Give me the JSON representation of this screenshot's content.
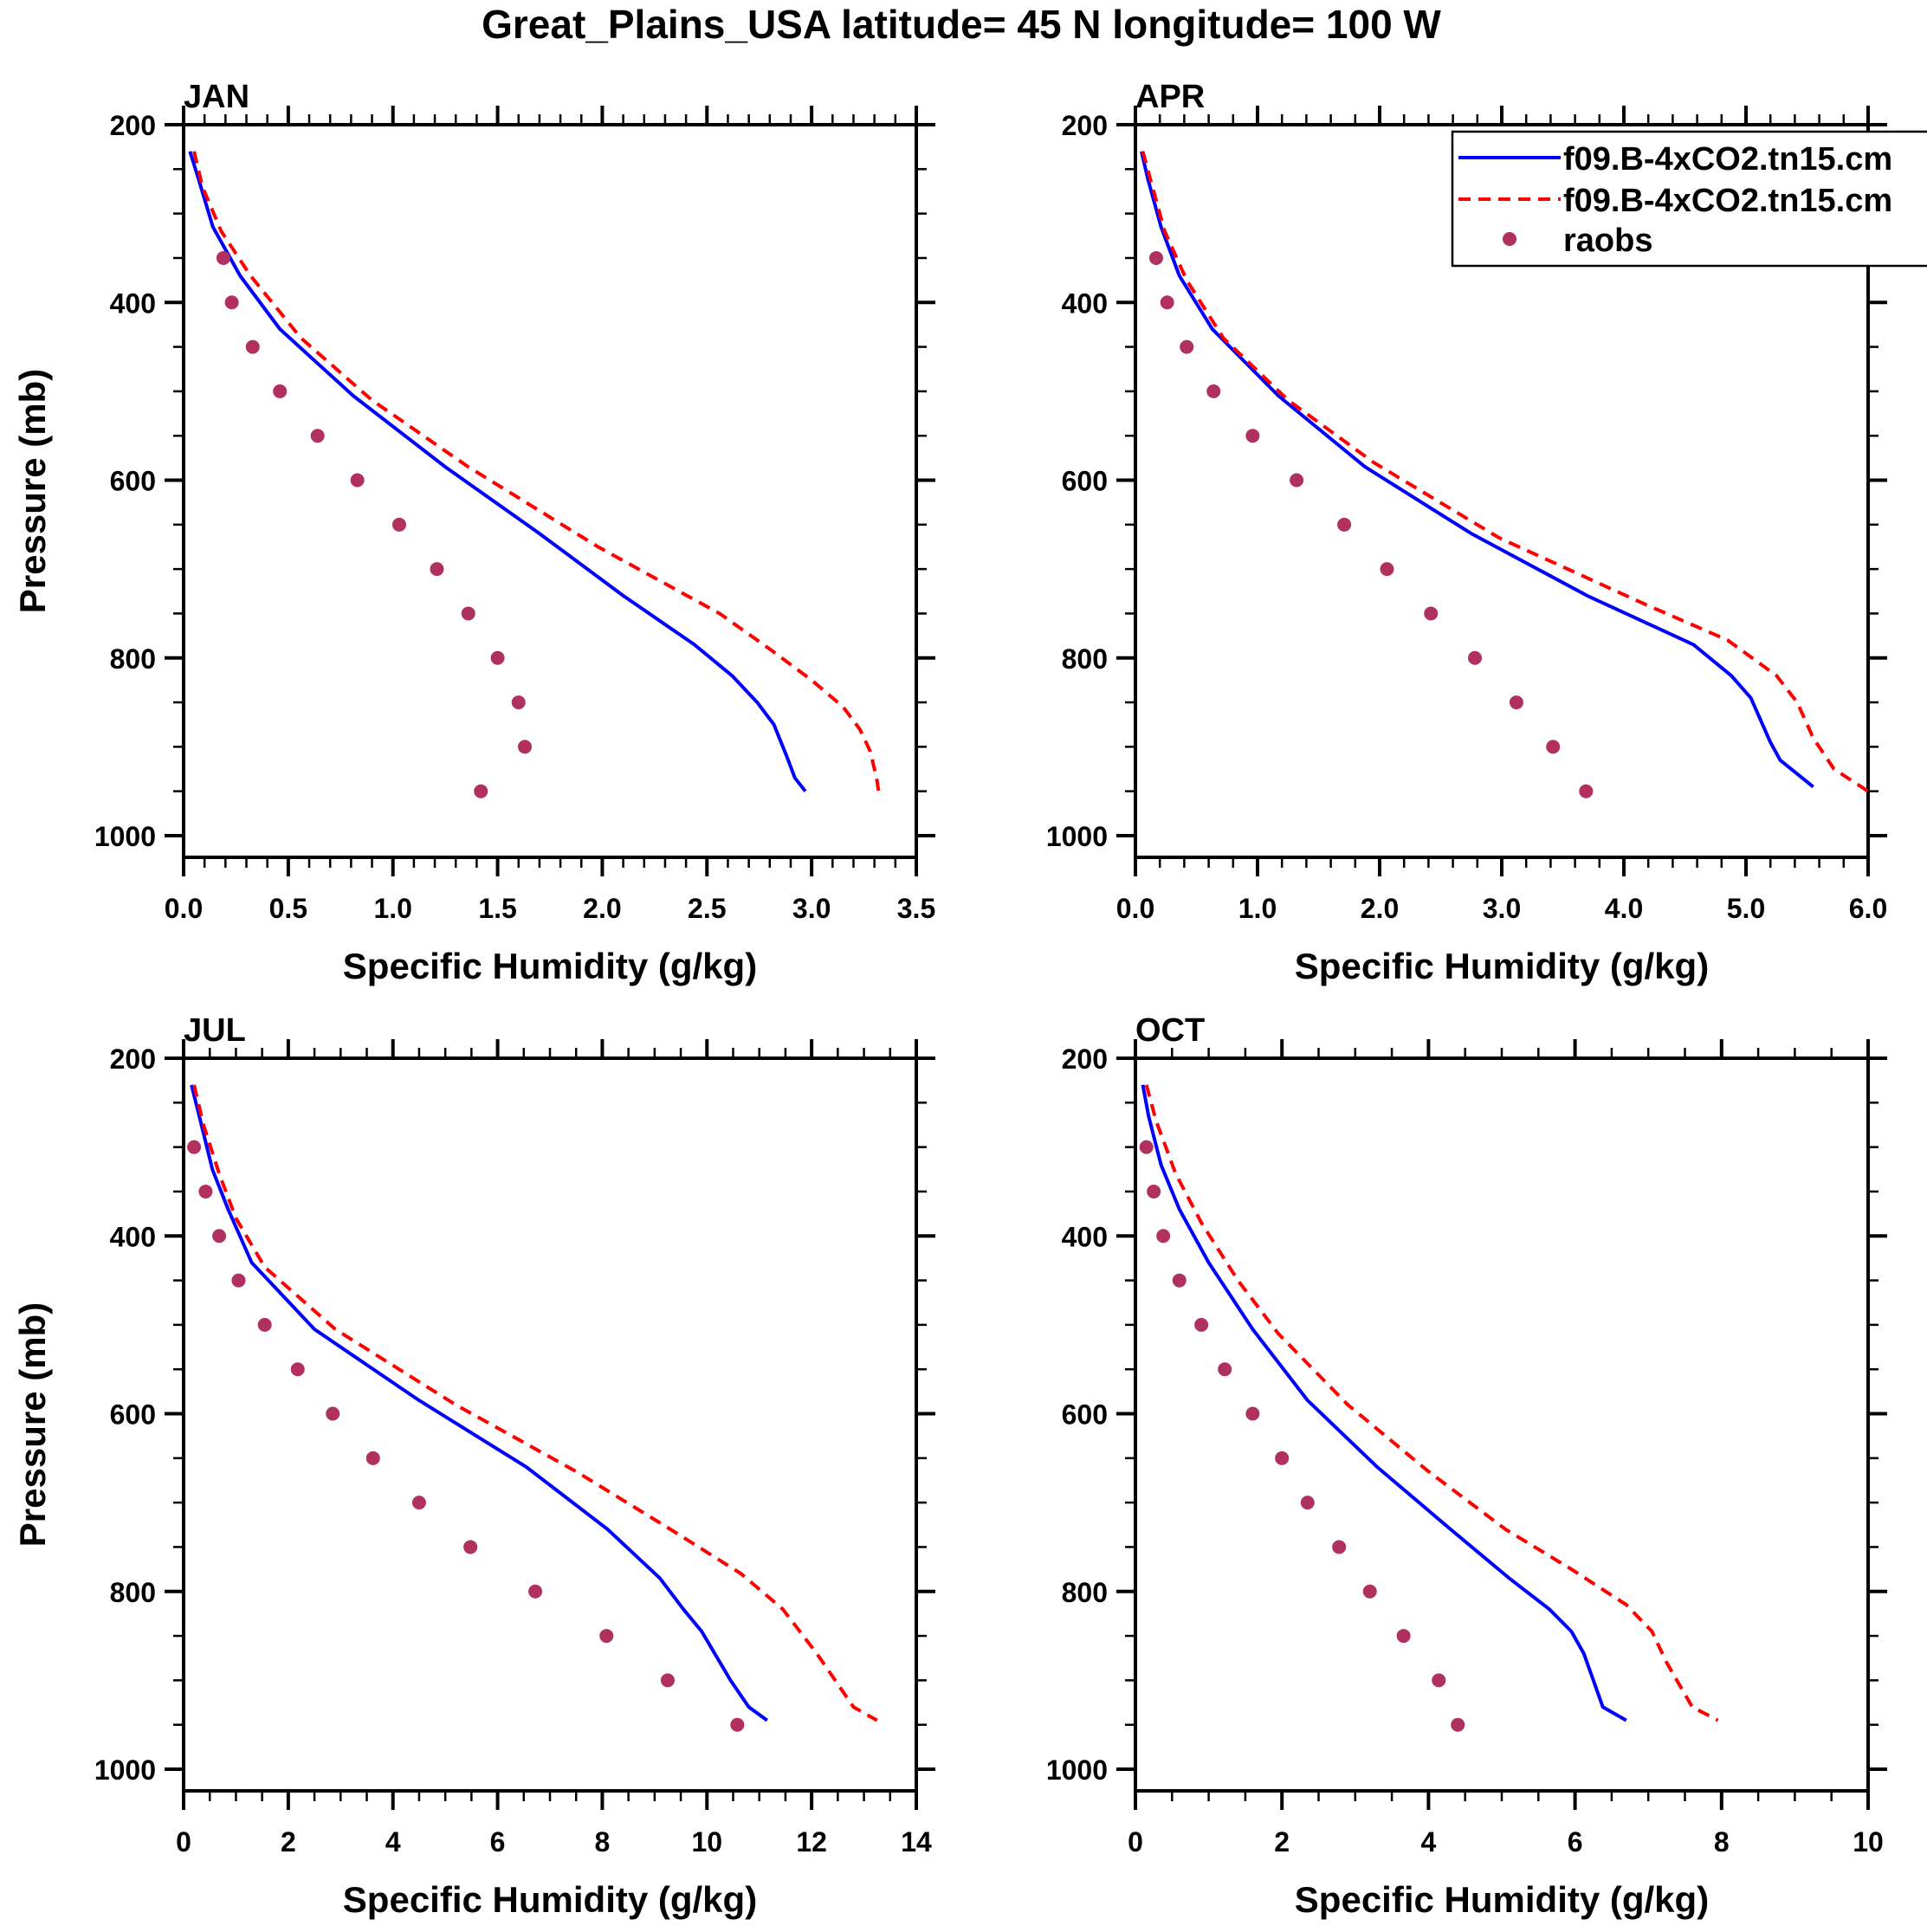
{
  "figure": {
    "title": "Great_Plains_USA  latitude= 45 N longitude= 100 W"
  },
  "legend": {
    "placement": "top-right of APR panel",
    "entries": [
      {
        "label": "f09.B-4xCO2.tn15.cm",
        "style": "solid",
        "color": "#0000ff"
      },
      {
        "label": "f09.B-4xCO2.tn15.cm",
        "style": "dashed",
        "color": "#ff0000"
      },
      {
        "label": "raobs",
        "style": "marker",
        "color": "#b03060"
      }
    ]
  },
  "chart_data": [
    {
      "type": "line",
      "title": "JAN",
      "xlabel": "Specific Humidity (g/kg)",
      "ylabel": "Pressure (mb)",
      "xlim": [
        0,
        3.5
      ],
      "ylim": [
        200,
        1020
      ],
      "y_inverted": true,
      "xticks": [
        0.0,
        0.5,
        1.0,
        1.5,
        2.0,
        2.5,
        3.0,
        3.5
      ],
      "xtick_labels": [
        "0.0",
        "0.5",
        "1.0",
        "1.5",
        "2.0",
        "2.5",
        "3.0",
        "3.5"
      ],
      "x_minor_step": 0.1,
      "yticks": [
        200,
        400,
        600,
        800,
        1000
      ],
      "ytick_labels": [
        "200",
        "400",
        "600",
        "800",
        "1000"
      ],
      "y_minor_step": 50,
      "series": [
        {
          "name": "f09.B-4xCO2.tn15.cm (solid)",
          "style": "solid",
          "color": "#0000ff",
          "p": [
            230,
            260,
            315,
            370,
            430,
            505,
            585,
            660,
            730,
            785,
            820,
            850,
            875,
            910,
            935,
            950
          ],
          "q": [
            0.03,
            0.07,
            0.14,
            0.27,
            0.46,
            0.81,
            1.25,
            1.7,
            2.1,
            2.44,
            2.62,
            2.74,
            2.82,
            2.88,
            2.92,
            2.97
          ]
        },
        {
          "name": "f09.B-4xCO2.tn15.cm (dashed)",
          "style": "dashed",
          "color": "#ff0000",
          "p": [
            230,
            270,
            320,
            370,
            440,
            510,
            585,
            675,
            750,
            790,
            825,
            855,
            880,
            905,
            935,
            950
          ],
          "q": [
            0.05,
            0.09,
            0.18,
            0.32,
            0.56,
            0.9,
            1.36,
            1.98,
            2.56,
            2.8,
            3.0,
            3.15,
            3.23,
            3.28,
            3.31,
            3.32
          ]
        },
        {
          "name": "raobs",
          "style": "marker",
          "color": "#b03060",
          "p": [
            350,
            400,
            450,
            500,
            550,
            600,
            650,
            700,
            750,
            800,
            850,
            900,
            950
          ],
          "q": [
            0.19,
            0.23,
            0.33,
            0.46,
            0.64,
            0.83,
            1.03,
            1.21,
            1.36,
            1.5,
            1.6,
            1.63,
            1.42
          ]
        }
      ]
    },
    {
      "type": "line",
      "title": "APR",
      "xlabel": "Specific Humidity (g/kg)",
      "ylabel": "",
      "xlim": [
        0,
        6.0
      ],
      "ylim": [
        200,
        1020
      ],
      "y_inverted": true,
      "xticks": [
        0,
        1,
        2,
        3,
        4,
        5,
        6
      ],
      "xtick_labels": [
        "0.0",
        "1.0",
        "2.0",
        "3.0",
        "4.0",
        "5.0",
        "6.0"
      ],
      "x_minor_step": 0.2,
      "yticks": [
        200,
        400,
        600,
        800,
        1000
      ],
      "ytick_labels": [
        "200",
        "400",
        "600",
        "800",
        "1000"
      ],
      "y_minor_step": 50,
      "series": [
        {
          "name": "f09.B-4xCO2.tn15.cm (solid)",
          "style": "solid",
          "color": "#0000ff",
          "p": [
            230,
            260,
            315,
            370,
            430,
            505,
            585,
            660,
            730,
            785,
            820,
            845,
            895,
            915,
            945
          ],
          "q": [
            0.05,
            0.1,
            0.21,
            0.36,
            0.63,
            1.17,
            1.88,
            2.75,
            3.7,
            4.57,
            4.88,
            5.04,
            5.2,
            5.28,
            5.55
          ]
        },
        {
          "name": "f09.B-4xCO2.tn15.cm (dashed)",
          "style": "dashed",
          "color": "#ff0000",
          "p": [
            230,
            265,
            320,
            375,
            440,
            510,
            580,
            665,
            740,
            780,
            820,
            850,
            890,
            925,
            950
          ],
          "q": [
            0.06,
            0.13,
            0.24,
            0.42,
            0.72,
            1.25,
            1.95,
            2.98,
            4.18,
            4.85,
            5.25,
            5.42,
            5.55,
            5.72,
            6.0
          ]
        },
        {
          "name": "raobs",
          "style": "marker",
          "color": "#b03060",
          "p": [
            350,
            400,
            450,
            500,
            550,
            600,
            650,
            700,
            750,
            800,
            850,
            900,
            950
          ],
          "q": [
            0.17,
            0.26,
            0.42,
            0.64,
            0.96,
            1.32,
            1.71,
            2.06,
            2.42,
            2.78,
            3.12,
            3.42,
            3.69
          ]
        }
      ]
    },
    {
      "type": "line",
      "title": "JUL",
      "xlabel": "Specific Humidity (g/kg)",
      "ylabel": "Pressure (mb)",
      "xlim": [
        0,
        14
      ],
      "ylim": [
        200,
        1020
      ],
      "y_inverted": true,
      "xticks": [
        0,
        2,
        4,
        6,
        8,
        10,
        12,
        14
      ],
      "xtick_labels": [
        "0",
        "2",
        "4",
        "6",
        "8",
        "10",
        "12",
        "14"
      ],
      "x_minor_step": 0.5,
      "yticks": [
        200,
        400,
        600,
        800,
        1000
      ],
      "ytick_labels": [
        "200",
        "400",
        "600",
        "800",
        "1000"
      ],
      "y_minor_step": 50,
      "series": [
        {
          "name": "f09.B-4xCO2.tn15.cm (solid)",
          "style": "solid",
          "color": "#0000ff",
          "p": [
            230,
            270,
            325,
            370,
            430,
            505,
            585,
            660,
            730,
            785,
            820,
            845,
            900,
            930,
            945
          ],
          "q": [
            0.15,
            0.32,
            0.55,
            0.85,
            1.3,
            2.5,
            4.5,
            6.55,
            8.1,
            9.1,
            9.55,
            9.9,
            10.45,
            10.8,
            11.15
          ]
        },
        {
          "name": "f09.B-4xCO2.tn15.cm (dashed)",
          "style": "dashed",
          "color": "#ff0000",
          "p": [
            230,
            275,
            330,
            380,
            435,
            505,
            590,
            665,
            730,
            780,
            820,
            870,
            930,
            945
          ],
          "q": [
            0.2,
            0.38,
            0.68,
            1.0,
            1.55,
            2.9,
            5.2,
            7.5,
            9.3,
            10.65,
            11.45,
            12.1,
            12.8,
            13.25
          ]
        },
        {
          "name": "raobs",
          "style": "marker",
          "color": "#b03060",
          "p": [
            300,
            350,
            400,
            450,
            500,
            550,
            600,
            650,
            700,
            750,
            800,
            850,
            900,
            950
          ],
          "q": [
            0.2,
            0.42,
            0.68,
            1.05,
            1.55,
            2.18,
            2.85,
            3.62,
            4.5,
            5.48,
            6.72,
            8.08,
            9.25,
            10.58
          ]
        }
      ]
    },
    {
      "type": "line",
      "title": "OCT",
      "xlabel": "Specific Humidity (g/kg)",
      "ylabel": "",
      "xlim": [
        0,
        10
      ],
      "ylim": [
        200,
        1020
      ],
      "y_inverted": true,
      "xticks": [
        0,
        2,
        4,
        6,
        8,
        10
      ],
      "xtick_labels": [
        "0",
        "2",
        "4",
        "6",
        "8",
        "10"
      ],
      "x_minor_step": 0.5,
      "yticks": [
        200,
        400,
        600,
        800,
        1000
      ],
      "ytick_labels": [
        "200",
        "400",
        "600",
        "800",
        "1000"
      ],
      "y_minor_step": 50,
      "series": [
        {
          "name": "f09.B-4xCO2.tn15.cm (solid)",
          "style": "solid",
          "color": "#0000ff",
          "p": [
            230,
            265,
            320,
            370,
            430,
            505,
            585,
            660,
            730,
            785,
            820,
            845,
            870,
            900,
            930,
            945
          ],
          "q": [
            0.1,
            0.18,
            0.35,
            0.6,
            1.0,
            1.6,
            2.35,
            3.3,
            4.3,
            5.1,
            5.65,
            5.95,
            6.12,
            6.25,
            6.38,
            6.7
          ]
        },
        {
          "name": "f09.B-4xCO2.tn15.cm (dashed)",
          "style": "dashed",
          "color": "#ff0000",
          "p": [
            230,
            270,
            330,
            385,
            450,
            510,
            590,
            665,
            730,
            775,
            815,
            845,
            880,
            930,
            945
          ],
          "q": [
            0.15,
            0.28,
            0.55,
            0.9,
            1.4,
            1.95,
            2.9,
            4.0,
            5.05,
            5.95,
            6.7,
            7.05,
            7.25,
            7.6,
            7.95
          ]
        },
        {
          "name": "raobs",
          "style": "marker",
          "color": "#b03060",
          "p": [
            300,
            350,
            400,
            450,
            500,
            550,
            600,
            650,
            700,
            750,
            800,
            850,
            900,
            950
          ],
          "q": [
            0.15,
            0.25,
            0.38,
            0.6,
            0.9,
            1.22,
            1.6,
            2.0,
            2.35,
            2.78,
            3.2,
            3.66,
            4.14,
            4.4
          ]
        }
      ]
    }
  ]
}
